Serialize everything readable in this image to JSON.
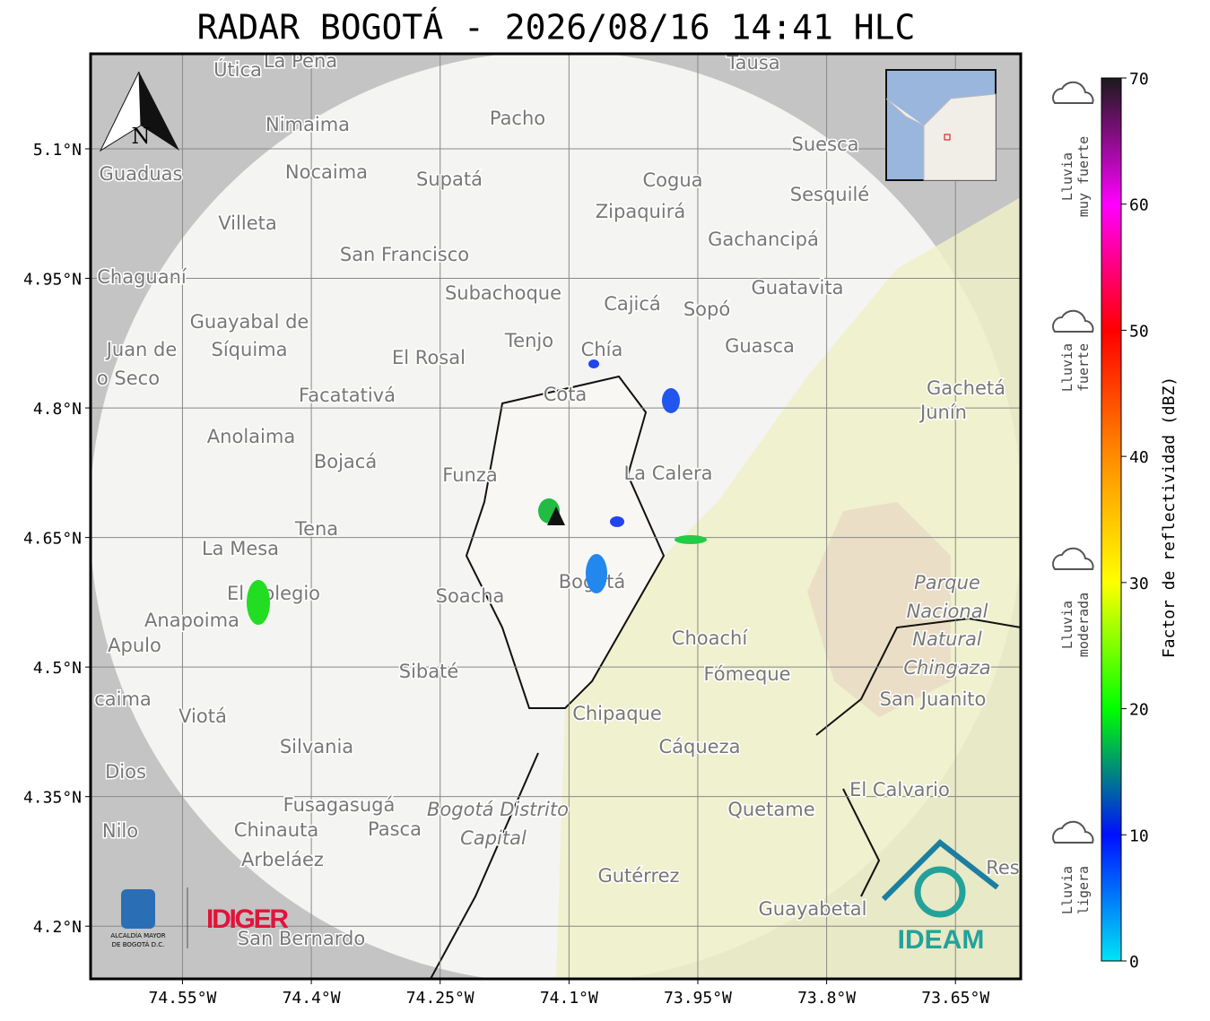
{
  "title": "RADAR BOGOTÁ - 2026/08/16 14:41 HLC",
  "map": {
    "lon_range": [
      -74.657,
      -73.574
    ],
    "lat_range": [
      4.139,
      5.21
    ],
    "lon_ticks": [
      {
        "value": -74.55,
        "label": "74.55°W"
      },
      {
        "value": -74.4,
        "label": "74.4°W"
      },
      {
        "value": -74.25,
        "label": "74.25°W"
      },
      {
        "value": -74.1,
        "label": "74.1°W"
      },
      {
        "value": -73.95,
        "label": "73.95°W"
      },
      {
        "value": -73.8,
        "label": "73.8°W"
      },
      {
        "value": -73.65,
        "label": "73.65°W"
      }
    ],
    "lat_ticks": [
      {
        "value": 4.2,
        "label": "4.2°N"
      },
      {
        "value": 4.35,
        "label": "4.35°N"
      },
      {
        "value": 4.5,
        "label": "4.5°N"
      },
      {
        "value": 4.65,
        "label": "4.65°N"
      },
      {
        "value": 4.8,
        "label": "4.8°N"
      },
      {
        "value": 4.95,
        "label": "4.95°N"
      },
      {
        "value": 5.1,
        "label": "5.1°N"
      }
    ],
    "north": "N",
    "places": [
      "Útica",
      "La Peña",
      "Tausa",
      "Pacho",
      "Nimaima",
      "Suesca",
      "Guaduas",
      "Nocaima",
      "Supatá",
      "Cogua",
      "Sesquilé",
      "Zipaquirá",
      "Villeta",
      "Gachancipá",
      "San Francisco",
      "Chaguaní",
      "Guatavita",
      "Subachoque",
      "Cajicá",
      "Sopó",
      "Guayabal de",
      "Síquima",
      "Tenjo",
      "Guasca",
      "Juan de",
      "El Rosal",
      "Chía",
      "o Seco",
      "Cota",
      "Facatativá",
      "Gachetá",
      "Junín",
      "Anolaima",
      "Bojacá",
      "Funza",
      "La Calera",
      "Tena",
      "La Mesa",
      "El Colegio",
      "Soacha",
      "Bogotá",
      "Parque",
      "Nacional",
      "Natural",
      "Chingaza",
      "Anapoima",
      "Apulo",
      "Choachí",
      "Sibaté",
      "Fómeque",
      "San Juanito",
      "caima",
      "Viotá",
      "Chipaque",
      "Silvania",
      "Cáqueza",
      "Dios",
      "El Calvario",
      "Fusagasugá",
      "Quetame",
      "Bogotá Distrito",
      "Capital",
      "Nilo",
      "Chinauta",
      "Pasca",
      "Arbeláez",
      "Gutérrez",
      "Guayabetal",
      "San Bernardo",
      "Res"
    ]
  },
  "colorbar": {
    "label": "Factor de reflectividad (dBZ)",
    "range": [
      0,
      70
    ],
    "ticks": [
      0,
      10,
      20,
      30,
      40,
      50,
      60,
      70
    ],
    "colors": [
      "#00e5f5",
      "#0010ff",
      "#00ff00",
      "#ffff00",
      "#ff8c00",
      "#ff0000",
      "#ff00ff",
      "#1a1a1a"
    ]
  },
  "rain_levels": [
    [
      "Lluvia",
      "muy fuerte"
    ],
    [
      "Lluvia",
      "fuerte"
    ],
    [
      "Lluvia",
      "moderada"
    ],
    [
      "Lluvia",
      "ligera"
    ]
  ],
  "logos": {
    "alcaldia": [
      "ALCALDÍA MAYOR",
      "DE BOGOTÁ D.C."
    ],
    "idiger": "IDIGER",
    "ideam": "IDEAM"
  }
}
